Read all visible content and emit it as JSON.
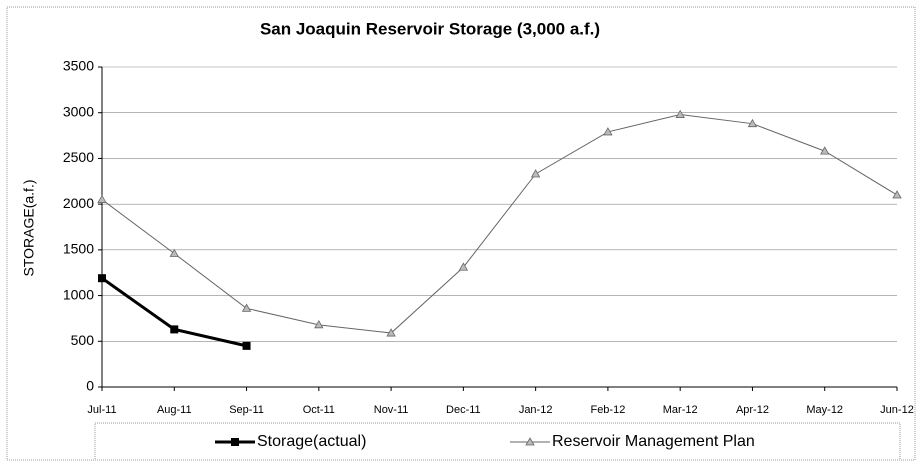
{
  "chart_data": {
    "type": "line",
    "title": "San Joaquin Reservoir Storage (3,000 a.f.)",
    "y_label": "STORAGE(a.f.)",
    "categories": [
      "Jul-11",
      "Aug-11",
      "Sep-11",
      "Oct-11",
      "Nov-11",
      "Dec-11",
      "Jan-12",
      "Feb-12",
      "Mar-12",
      "Apr-12",
      "May-12",
      "Jun-12"
    ],
    "series": [
      {
        "name": "Storage(actual)",
        "color": "#000000",
        "marker": "square",
        "values": [
          1190,
          630,
          450,
          null,
          null,
          null,
          null,
          null,
          null,
          null,
          null,
          null
        ]
      },
      {
        "name": "Reservoir Management Plan",
        "color": "#666666",
        "marker": "triangle",
        "values": [
          2050,
          1460,
          860,
          680,
          590,
          1310,
          2330,
          2790,
          2980,
          2880,
          2580,
          2100
        ]
      }
    ],
    "ylim": [
      0,
      3500
    ],
    "yticks": [
      0,
      500,
      1000,
      1500,
      2000,
      2500,
      3000,
      3500
    ],
    "grid": true,
    "legend": "bottom"
  }
}
